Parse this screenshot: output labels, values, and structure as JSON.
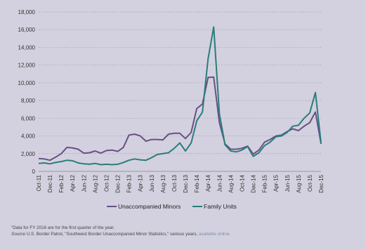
{
  "chart_data": {
    "type": "line",
    "ylim": [
      0,
      18000
    ],
    "yticks": [
      0,
      2000,
      4000,
      6000,
      8000,
      10000,
      12000,
      14000,
      16000,
      18000
    ],
    "ytick_labels": [
      "0",
      "2,000",
      "4,000",
      "6,000",
      "8,000",
      "10,000",
      "12,000",
      "14,000",
      "16,000",
      "18,000"
    ],
    "xtick_labels": [
      "Oct-11",
      "Dec-11",
      "Feb-12",
      "Apr-12",
      "Jun-12",
      "Aug-12",
      "Oct-12",
      "Dec-12",
      "Feb-13",
      "Apr-13",
      "Jun-13",
      "Aug-13",
      "Oct-13",
      "Dec-13",
      "Feb-14",
      "Apr-14",
      "Jun-14",
      "Aug-14",
      "Oct-14",
      "Dec-14",
      "Feb-15",
      "Apr-15",
      "Jun-15",
      "Aug-15",
      "Oct-15",
      "Dec-15"
    ],
    "grid": true,
    "legend_position": "bottom",
    "series": [
      {
        "name": "Unaccompanied Minors",
        "color": "#6b4f86",
        "values": [
          1450,
          1400,
          1250,
          1600,
          2000,
          2700,
          2650,
          2500,
          2050,
          2100,
          2300,
          2050,
          2350,
          2400,
          2250,
          2700,
          4100,
          4200,
          4000,
          3400,
          3600,
          3600,
          3550,
          4200,
          4300,
          4300,
          3700,
          4400,
          7100,
          7600,
          10600,
          10650,
          5500,
          3100,
          2500,
          2500,
          2600,
          2850,
          1950,
          2400,
          3300,
          3600,
          4000,
          4100,
          4500,
          4800,
          4600,
          5100,
          5500,
          6700,
          3100
        ]
      },
      {
        "name": "Family Units",
        "color": "#2a7d7b",
        "values": [
          900,
          950,
          850,
          1000,
          1100,
          1250,
          1200,
          950,
          850,
          800,
          900,
          750,
          800,
          750,
          800,
          1000,
          1250,
          1400,
          1300,
          1250,
          1550,
          1900,
          2000,
          2100,
          2600,
          3200,
          2300,
          3200,
          5700,
          6700,
          12700,
          16300,
          6500,
          3000,
          2300,
          2200,
          2400,
          2800,
          1700,
          2100,
          2900,
          3300,
          3900,
          4000,
          4400,
          5100,
          5200,
          6000,
          6600,
          8900,
          3200
        ]
      }
    ]
  },
  "legend": {
    "minors": "Unaccompanied Minors",
    "family": "Family Units"
  },
  "footnotes": {
    "line1": "\"Data for FY 2016 are for the first quarter of the year.",
    "source_label": "Source",
    "source_text": " U.S. Border Patrol, \"Southwest Border Unaccompanied Minor Statistics,\" various years, ",
    "source_link": "available online."
  }
}
